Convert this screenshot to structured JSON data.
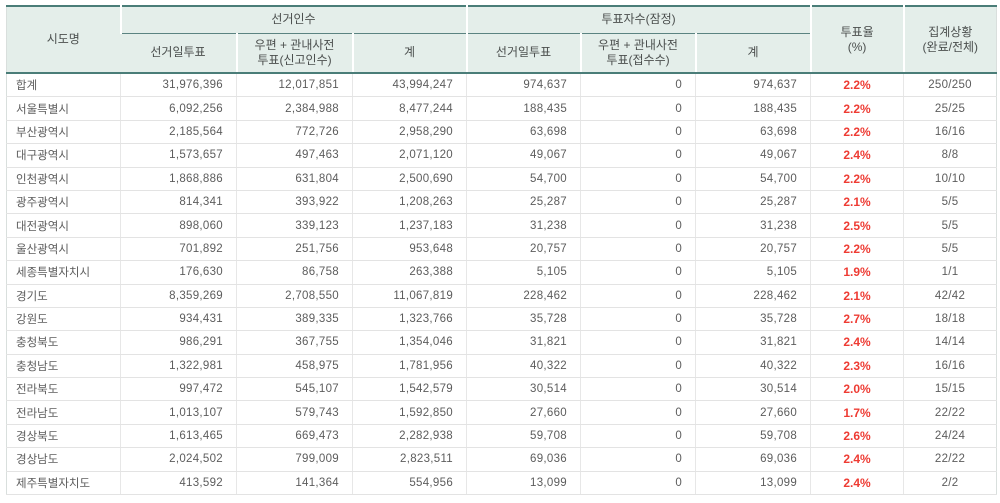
{
  "colors": {
    "accent_teal": "#4a7d78",
    "header_bg": "#e4eeea",
    "header_text": "#4b4f4e",
    "body_text": "#5c5c5c",
    "grid_line": "#e3e3e3",
    "turnout_red": "#ee3b33"
  },
  "table": {
    "headers": {
      "sido": "시도명",
      "electors_group": "선거인수",
      "voters_group": "투표자수(잠정)",
      "election_day_vote_1": "선거일투표",
      "mail_pre_vote_report": "우편 + 관내사전\n투표(신고인수)",
      "total_1": "계",
      "election_day_vote_2": "선거일투표",
      "mail_pre_vote_receive": "우편 + 관내사전\n투표(접수수)",
      "total_2": "계",
      "turnout": "투표율\n(%)",
      "tally_status": "집계상황\n(완료/전체)"
    },
    "rows": [
      {
        "sido": "합계",
        "electors": [
          "31,976,396",
          "12,017,851",
          "43,994,247"
        ],
        "voters": [
          "974,637",
          "0",
          "974,637"
        ],
        "turnout": "2.2%",
        "status": "250/250"
      },
      {
        "sido": "서울특별시",
        "electors": [
          "6,092,256",
          "2,384,988",
          "8,477,244"
        ],
        "voters": [
          "188,435",
          "0",
          "188,435"
        ],
        "turnout": "2.2%",
        "status": "25/25"
      },
      {
        "sido": "부산광역시",
        "electors": [
          "2,185,564",
          "772,726",
          "2,958,290"
        ],
        "voters": [
          "63,698",
          "0",
          "63,698"
        ],
        "turnout": "2.2%",
        "status": "16/16"
      },
      {
        "sido": "대구광역시",
        "electors": [
          "1,573,657",
          "497,463",
          "2,071,120"
        ],
        "voters": [
          "49,067",
          "0",
          "49,067"
        ],
        "turnout": "2.4%",
        "status": "8/8"
      },
      {
        "sido": "인천광역시",
        "electors": [
          "1,868,886",
          "631,804",
          "2,500,690"
        ],
        "voters": [
          "54,700",
          "0",
          "54,700"
        ],
        "turnout": "2.2%",
        "status": "10/10"
      },
      {
        "sido": "광주광역시",
        "electors": [
          "814,341",
          "393,922",
          "1,208,263"
        ],
        "voters": [
          "25,287",
          "0",
          "25,287"
        ],
        "turnout": "2.1%",
        "status": "5/5"
      },
      {
        "sido": "대전광역시",
        "electors": [
          "898,060",
          "339,123",
          "1,237,183"
        ],
        "voters": [
          "31,238",
          "0",
          "31,238"
        ],
        "turnout": "2.5%",
        "status": "5/5"
      },
      {
        "sido": "울산광역시",
        "electors": [
          "701,892",
          "251,756",
          "953,648"
        ],
        "voters": [
          "20,757",
          "0",
          "20,757"
        ],
        "turnout": "2.2%",
        "status": "5/5"
      },
      {
        "sido": "세종특별자치시",
        "electors": [
          "176,630",
          "86,758",
          "263,388"
        ],
        "voters": [
          "5,105",
          "0",
          "5,105"
        ],
        "turnout": "1.9%",
        "status": "1/1"
      },
      {
        "sido": "경기도",
        "electors": [
          "8,359,269",
          "2,708,550",
          "11,067,819"
        ],
        "voters": [
          "228,462",
          "0",
          "228,462"
        ],
        "turnout": "2.1%",
        "status": "42/42"
      },
      {
        "sido": "강원도",
        "electors": [
          "934,431",
          "389,335",
          "1,323,766"
        ],
        "voters": [
          "35,728",
          "0",
          "35,728"
        ],
        "turnout": "2.7%",
        "status": "18/18"
      },
      {
        "sido": "충청북도",
        "electors": [
          "986,291",
          "367,755",
          "1,354,046"
        ],
        "voters": [
          "31,821",
          "0",
          "31,821"
        ],
        "turnout": "2.4%",
        "status": "14/14"
      },
      {
        "sido": "충청남도",
        "electors": [
          "1,322,981",
          "458,975",
          "1,781,956"
        ],
        "voters": [
          "40,322",
          "0",
          "40,322"
        ],
        "turnout": "2.3%",
        "status": "16/16"
      },
      {
        "sido": "전라북도",
        "electors": [
          "997,472",
          "545,107",
          "1,542,579"
        ],
        "voters": [
          "30,514",
          "0",
          "30,514"
        ],
        "turnout": "2.0%",
        "status": "15/15"
      },
      {
        "sido": "전라남도",
        "electors": [
          "1,013,107",
          "579,743",
          "1,592,850"
        ],
        "voters": [
          "27,660",
          "0",
          "27,660"
        ],
        "turnout": "1.7%",
        "status": "22/22"
      },
      {
        "sido": "경상북도",
        "electors": [
          "1,613,465",
          "669,473",
          "2,282,938"
        ],
        "voters": [
          "59,708",
          "0",
          "59,708"
        ],
        "turnout": "2.6%",
        "status": "24/24"
      },
      {
        "sido": "경상남도",
        "electors": [
          "2,024,502",
          "799,009",
          "2,823,511"
        ],
        "voters": [
          "69,036",
          "0",
          "69,036"
        ],
        "turnout": "2.4%",
        "status": "22/22"
      },
      {
        "sido": "제주특별자치도",
        "electors": [
          "413,592",
          "141,364",
          "554,956"
        ],
        "voters": [
          "13,099",
          "0",
          "13,099"
        ],
        "turnout": "2.4%",
        "status": "2/2"
      }
    ]
  }
}
